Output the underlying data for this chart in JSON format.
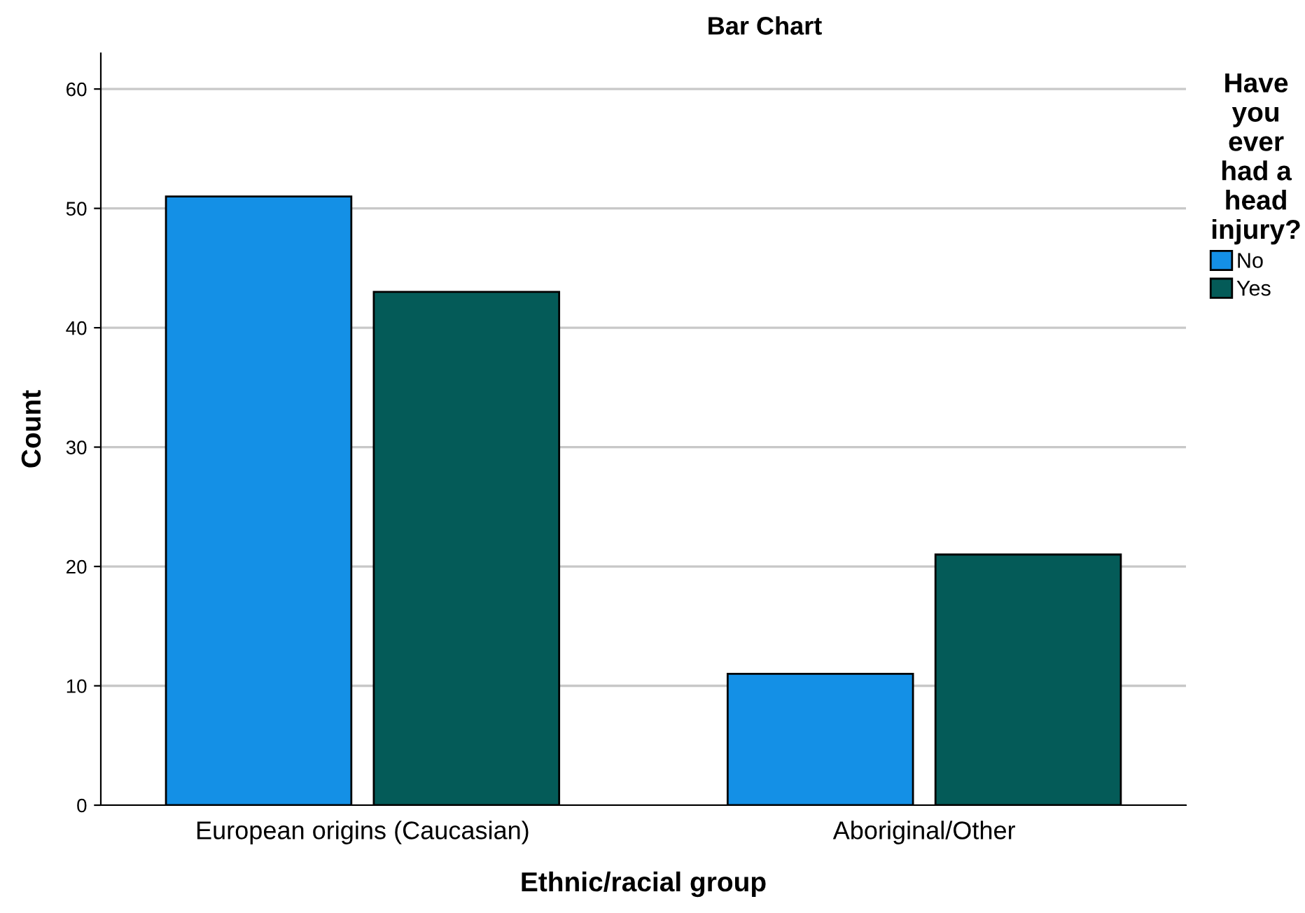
{
  "chart_data": {
    "type": "bar",
    "title": "Bar Chart",
    "xlabel": "Ethnic/racial group",
    "ylabel": "Count",
    "legend_title": "Have\nyou\never\nhad a\nhead\ninjury?",
    "categories": [
      "European origins (Caucasian)",
      "Aboriginal/Other"
    ],
    "series": [
      {
        "name": "No",
        "color": "#1490e6",
        "values": [
          51,
          11
        ]
      },
      {
        "name": "Yes",
        "color": "#045b58",
        "values": [
          43,
          21
        ]
      }
    ],
    "ylim": [
      0,
      63
    ],
    "yticks": [
      0,
      10,
      20,
      30,
      40,
      50,
      60
    ],
    "grid": "y",
    "legend": "right"
  }
}
